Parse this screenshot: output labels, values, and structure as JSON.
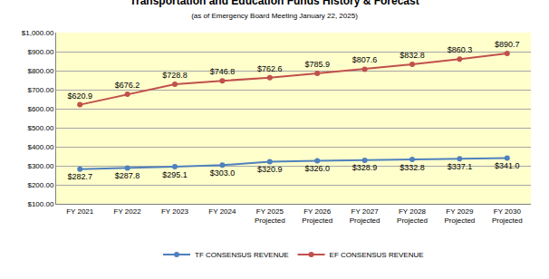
{
  "chart_data": {
    "type": "line",
    "title": "Transportation and Education Funds History & Forecast",
    "subtitle": "(as of Emergency Board Meeting January 22, 2025)",
    "categories": [
      "FY 2021",
      "FY 2022",
      "FY 2023",
      "FY 2024",
      "FY 2025\nProjected",
      "FY 2026\nProjected",
      "FY 2027\nProjected",
      "FY 2028\nProjected",
      "FY 2029\nProjected",
      "FY 2030\nProjected"
    ],
    "series": [
      {
        "name": "TF CONSENSUS REVENUE",
        "color": "#4f81bd",
        "marker": "circle",
        "line_style": "solid",
        "values": [
          282.7,
          287.8,
          295.1,
          303.0,
          320.9,
          326.0,
          328.9,
          332.8,
          337.1,
          341.0
        ],
        "value_labels": [
          "$282.7",
          "$287.8",
          "$295.1",
          "$303.0",
          "$320.9",
          "$326.0",
          "$328.9",
          "$332.8",
          "$337.1",
          "$341.0"
        ]
      },
      {
        "name": "EF CONSENSUS REVENUE",
        "color": "#c0504d",
        "marker": "circle",
        "line_style": "solid",
        "values": [
          620.9,
          676.2,
          728.8,
          746.8,
          762.6,
          785.9,
          807.6,
          832.8,
          860.3,
          890.7
        ],
        "value_labels": [
          "$620.9",
          "$676.2",
          "$728.8",
          "$746.8",
          "$762.6",
          "$785.9",
          "$807.6",
          "$832.8",
          "$860.3",
          "$890.7"
        ]
      }
    ],
    "ylim": [
      100,
      1000
    ],
    "yticks": [
      {
        "value": 100,
        "label": "$100.00"
      },
      {
        "value": 200,
        "label": "$200.00"
      },
      {
        "value": 300,
        "label": "$300.00"
      },
      {
        "value": 400,
        "label": "$400.00"
      },
      {
        "value": 500,
        "label": "$500.00"
      },
      {
        "value": 600,
        "label": "$600.00"
      },
      {
        "value": 700,
        "label": "$700.00"
      },
      {
        "value": 800,
        "label": "$800.00"
      },
      {
        "value": 900,
        "label": "$900.00"
      },
      {
        "value": 1000,
        "label": "$1,000.00"
      }
    ],
    "grid": true,
    "legend": "bottom",
    "data_labels": true
  }
}
